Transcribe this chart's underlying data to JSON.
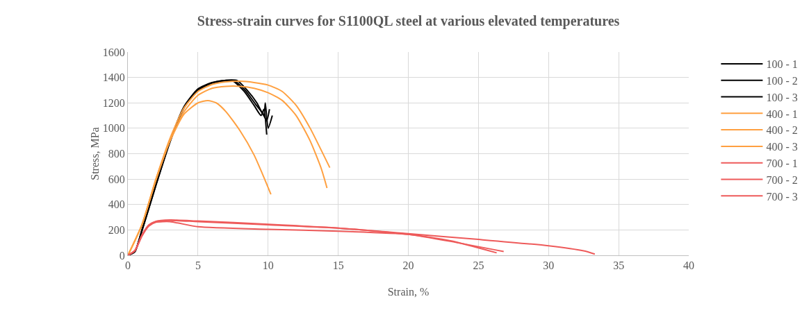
{
  "chart_data": {
    "type": "line",
    "title": "Stress-strain curves for S1100QL steel at various elevated temperatures",
    "xlabel": "Strain, %",
    "ylabel": "Stress, MPa",
    "xlim": [
      0,
      40
    ],
    "xticks": [
      0,
      5,
      10,
      15,
      20,
      25,
      30,
      35,
      40
    ],
    "ylim": [
      0,
      1600
    ],
    "yticks": [
      0,
      200,
      400,
      600,
      800,
      1000,
      1200,
      1400,
      1600
    ],
    "grid": true,
    "legend": "right",
    "marker": "none",
    "line_style": "solid",
    "series": [
      {
        "name": "100 - 1",
        "color": "#000000",
        "x": [
          0,
          0.5,
          1,
          2,
          3,
          4,
          5,
          6,
          7,
          7.8,
          8.5,
          9.2,
          9.7,
          9.8,
          10,
          10.3
        ],
        "values": [
          0,
          30,
          200,
          560,
          900,
          1170,
          1310,
          1360,
          1378,
          1375,
          1300,
          1200,
          1100,
          1200,
          1000,
          1100
        ]
      },
      {
        "name": "100 - 2",
        "color": "#000000",
        "x": [
          0,
          0.5,
          1,
          2,
          3,
          4,
          5,
          6,
          7,
          7.5,
          8.3,
          9,
          9.5,
          9.7,
          9.9
        ],
        "values": [
          0,
          30,
          190,
          550,
          890,
          1160,
          1300,
          1355,
          1375,
          1372,
          1290,
          1180,
          1100,
          1150,
          950
        ]
      },
      {
        "name": "100 - 3",
        "color": "#000000",
        "x": [
          0,
          0.5,
          1,
          2,
          3,
          4,
          5,
          6,
          7,
          7.6,
          8.4,
          9.1,
          9.6,
          9.9,
          10.1
        ],
        "values": [
          0,
          30,
          195,
          555,
          895,
          1165,
          1305,
          1358,
          1377,
          1374,
          1295,
          1190,
          1120,
          1060,
          1150
        ]
      },
      {
        "name": "400 - 1",
        "color": "#ffa040",
        "x": [
          0,
          1,
          2,
          3,
          4,
          5,
          6,
          7,
          8,
          9,
          10,
          11,
          12,
          13,
          14,
          14.4
        ],
        "values": [
          0,
          240,
          600,
          920,
          1160,
          1290,
          1345,
          1365,
          1370,
          1360,
          1340,
          1290,
          1180,
          1000,
          780,
          690
        ]
      },
      {
        "name": "400 - 2",
        "color": "#ffa040",
        "x": [
          0,
          1,
          2,
          3,
          4,
          5,
          6,
          7,
          8,
          9,
          10,
          11,
          12,
          13,
          13.8,
          14.2
        ],
        "values": [
          0,
          240,
          590,
          900,
          1130,
          1260,
          1315,
          1330,
          1330,
          1315,
          1280,
          1220,
          1100,
          900,
          680,
          530
        ]
      },
      {
        "name": "400 - 3",
        "color": "#ffa040",
        "x": [
          0,
          1,
          2,
          3,
          4,
          5,
          5.7,
          6.3,
          7,
          8,
          9,
          9.6,
          10.2
        ],
        "values": [
          0,
          240,
          600,
          900,
          1110,
          1200,
          1218,
          1200,
          1130,
          980,
          790,
          640,
          480
        ]
      },
      {
        "name": "700 - 1",
        "color": "#ee5a5a",
        "x": [
          0,
          0.5,
          1,
          1.5,
          2,
          3,
          5,
          10,
          15,
          20,
          25,
          30,
          32.5,
          33.3
        ],
        "values": [
          0,
          40,
          160,
          240,
          265,
          275,
          265,
          240,
          215,
          170,
          125,
          75,
          35,
          10
        ]
      },
      {
        "name": "700 - 2",
        "color": "#ee5a5a",
        "x": [
          0,
          0.5,
          1,
          1.5,
          2,
          3,
          5,
          10,
          15,
          20,
          23,
          26.3
        ],
        "values": [
          0,
          35,
          150,
          230,
          260,
          265,
          225,
          205,
          190,
          165,
          115,
          20
        ]
      },
      {
        "name": "700 - 3",
        "color": "#ee5a5a",
        "x": [
          0,
          0.5,
          1,
          1.5,
          2,
          3,
          5,
          10,
          15,
          20,
          23,
          26.8
        ],
        "values": [
          0,
          38,
          155,
          238,
          268,
          278,
          270,
          245,
          215,
          165,
          110,
          30
        ]
      }
    ]
  }
}
